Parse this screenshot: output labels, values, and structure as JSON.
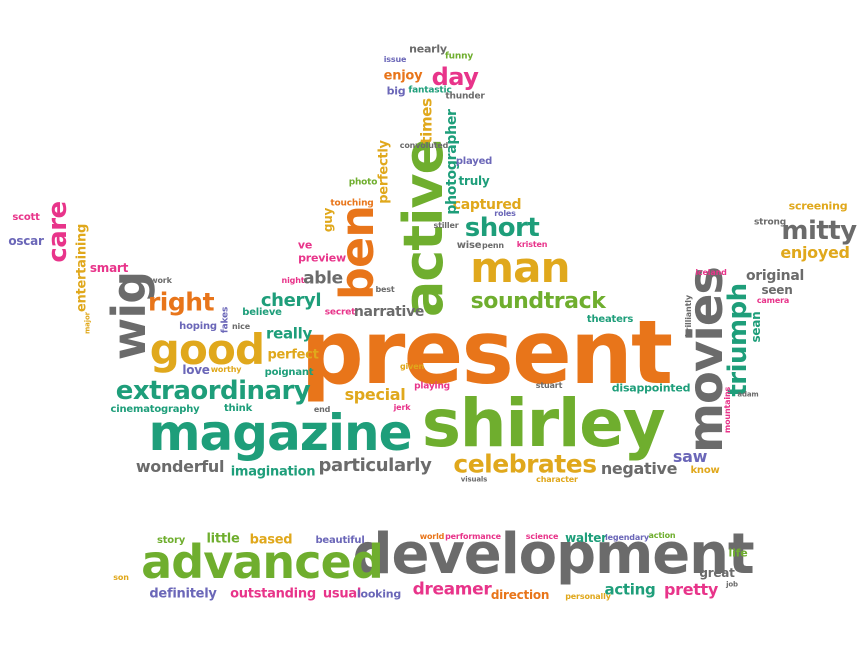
{
  "colors": {
    "orange": "#E8751A",
    "pink": "#E8348A",
    "green": "#6FAE2E",
    "teal": "#1E9E7A",
    "gray": "#6B6B6B",
    "gold": "#E0A81C",
    "purple": "#6B67B8"
  },
  "words": [
    {
      "text": "present",
      "color": "orange"
    },
    {
      "text": "shirley",
      "color": "green"
    },
    {
      "text": "magazine",
      "color": "teal"
    },
    {
      "text": "development",
      "color": "gray"
    },
    {
      "text": "advanced",
      "color": "green"
    },
    {
      "text": "active",
      "color": "green"
    },
    {
      "text": "movies",
      "color": "gray"
    },
    {
      "text": "man",
      "color": "gold"
    },
    {
      "text": "good",
      "color": "gold"
    },
    {
      "text": "ben",
      "color": "orange"
    },
    {
      "text": "wig",
      "color": "gray"
    },
    {
      "text": "extraordinary",
      "color": "teal"
    },
    {
      "text": "soundtrack",
      "color": "green"
    },
    {
      "text": "celebrates",
      "color": "gold"
    },
    {
      "text": "particularly",
      "color": "gray"
    },
    {
      "text": "triumph",
      "color": "teal"
    },
    {
      "text": "right",
      "color": "orange"
    },
    {
      "text": "short",
      "color": "teal"
    },
    {
      "text": "mitty",
      "color": "gray"
    },
    {
      "text": "day",
      "color": "pink"
    },
    {
      "text": "care",
      "color": "pink"
    },
    {
      "text": "cheryl",
      "color": "teal"
    },
    {
      "text": "wonderful",
      "color": "gray"
    },
    {
      "text": "negative",
      "color": "gray"
    },
    {
      "text": "imagination",
      "color": "teal"
    },
    {
      "text": "able",
      "color": "gray"
    },
    {
      "text": "narrative",
      "color": "gray"
    },
    {
      "text": "really",
      "color": "teal"
    },
    {
      "text": "perfect",
      "color": "gold"
    },
    {
      "text": "special",
      "color": "gold"
    },
    {
      "text": "saw",
      "color": "purple"
    },
    {
      "text": "dreamer",
      "color": "pink"
    },
    {
      "text": "acting",
      "color": "teal"
    },
    {
      "text": "pretty",
      "color": "pink"
    },
    {
      "text": "usual",
      "color": "pink"
    },
    {
      "text": "outstanding",
      "color": "pink"
    },
    {
      "text": "definitely",
      "color": "purple"
    },
    {
      "text": "direction",
      "color": "orange"
    },
    {
      "text": "looking",
      "color": "purple"
    },
    {
      "text": "enjoyed",
      "color": "gold"
    },
    {
      "text": "original",
      "color": "gray"
    },
    {
      "text": "seen",
      "color": "gray"
    },
    {
      "text": "sean",
      "color": "teal"
    },
    {
      "text": "captured",
      "color": "gold"
    },
    {
      "text": "times",
      "color": "gold"
    },
    {
      "text": "photographer",
      "color": "teal"
    },
    {
      "text": "perfectly",
      "color": "gold"
    },
    {
      "text": "guy",
      "color": "gold"
    },
    {
      "text": "truly",
      "color": "teal"
    },
    {
      "text": "played",
      "color": "purple"
    },
    {
      "text": "enjoy",
      "color": "orange"
    },
    {
      "text": "entertaining",
      "color": "gold"
    },
    {
      "text": "smart",
      "color": "pink"
    },
    {
      "text": "oscar",
      "color": "purple"
    },
    {
      "text": "scott",
      "color": "pink"
    },
    {
      "text": "love",
      "color": "purple"
    },
    {
      "text": "hoping",
      "color": "purple"
    },
    {
      "text": "believe",
      "color": "teal"
    },
    {
      "text": "poignant",
      "color": "teal"
    },
    {
      "text": "cinematography",
      "color": "teal"
    },
    {
      "text": "think",
      "color": "teal"
    },
    {
      "text": "disappointed",
      "color": "teal"
    },
    {
      "text": "theaters",
      "color": "teal"
    },
    {
      "text": "preview",
      "color": "pink"
    },
    {
      "text": "ve",
      "color": "pink"
    },
    {
      "text": "screening",
      "color": "gold"
    },
    {
      "text": "know",
      "color": "gold"
    },
    {
      "text": "little",
      "color": "green"
    },
    {
      "text": "based",
      "color": "gold"
    },
    {
      "text": "story",
      "color": "green"
    },
    {
      "text": "beautiful",
      "color": "purple"
    },
    {
      "text": "walter",
      "color": "teal"
    },
    {
      "text": "great",
      "color": "gray"
    },
    {
      "text": "life",
      "color": "green"
    },
    {
      "text": "big",
      "color": "purple"
    },
    {
      "text": "nearly",
      "color": "gray"
    },
    {
      "text": "funny",
      "color": "green"
    },
    {
      "text": "issue",
      "color": "purple"
    },
    {
      "text": "fantastic",
      "color": "teal"
    },
    {
      "text": "thunder",
      "color": "gray"
    },
    {
      "text": "convoluted",
      "color": "gray"
    },
    {
      "text": "photo",
      "color": "green"
    },
    {
      "text": "touching",
      "color": "orange"
    },
    {
      "text": "stiller",
      "color": "gray"
    },
    {
      "text": "roles",
      "color": "purple"
    },
    {
      "text": "wise",
      "color": "gray"
    },
    {
      "text": "penn",
      "color": "gray"
    },
    {
      "text": "kristen",
      "color": "pink"
    },
    {
      "text": "strong",
      "color": "gray"
    },
    {
      "text": "iceland",
      "color": "pink"
    },
    {
      "text": "brilliantly",
      "color": "gray"
    },
    {
      "text": "camera",
      "color": "pink"
    },
    {
      "text": "work",
      "color": "gray"
    },
    {
      "text": "night",
      "color": "pink"
    },
    {
      "text": "best",
      "color": "gray"
    },
    {
      "text": "secret",
      "color": "pink"
    },
    {
      "text": "nice",
      "color": "gray"
    },
    {
      "text": "fakes",
      "color": "purple"
    },
    {
      "text": "worthy",
      "color": "gold"
    },
    {
      "text": "given",
      "color": "gold"
    },
    {
      "text": "playing",
      "color": "pink"
    },
    {
      "text": "end",
      "color": "gray"
    },
    {
      "text": "jerk",
      "color": "pink"
    },
    {
      "text": "stuart",
      "color": "gray"
    },
    {
      "text": "visuals",
      "color": "gray"
    },
    {
      "text": "character",
      "color": "gold"
    },
    {
      "text": "adam",
      "color": "gray"
    },
    {
      "text": "mountains",
      "color": "pink"
    },
    {
      "text": "major",
      "color": "gold"
    },
    {
      "text": "world",
      "color": "orange"
    },
    {
      "text": "performance",
      "color": "pink"
    },
    {
      "text": "science",
      "color": "pink"
    },
    {
      "text": "legendary",
      "color": "purple"
    },
    {
      "text": "action",
      "color": "green"
    },
    {
      "text": "son",
      "color": "gold"
    },
    {
      "text": "personally",
      "color": "gold"
    },
    {
      "text": "job",
      "color": "gray"
    }
  ]
}
